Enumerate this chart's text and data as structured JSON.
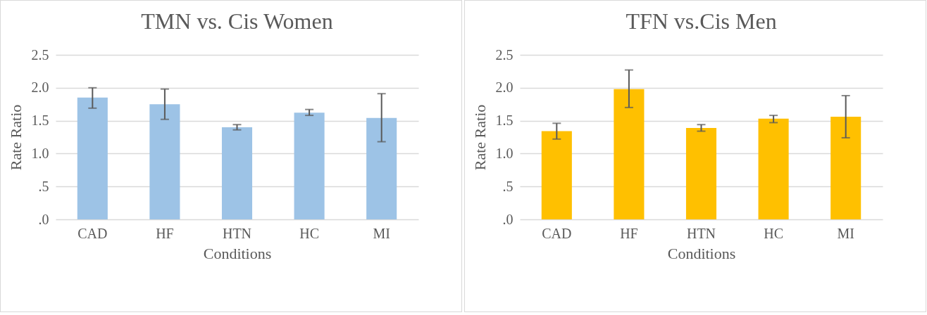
{
  "chart_data": [
    {
      "type": "bar",
      "title": "TMN vs. Cis Women",
      "xlabel": "Conditions",
      "ylabel": "Rate Ratio",
      "categories": [
        "CAD",
        "HF",
        "HTN",
        "HC",
        "MI"
      ],
      "color": "#9dc3e6",
      "values": [
        1.85,
        1.75,
        1.4,
        1.62,
        1.54
      ],
      "errors": [
        [
          1.69,
          2.0
        ],
        [
          1.52,
          1.98
        ],
        [
          1.36,
          1.44
        ],
        [
          1.58,
          1.67
        ],
        [
          1.18,
          1.91
        ]
      ],
      "ylim": [
        0,
        2.5
      ],
      "yticks": [
        {
          "value": 0,
          "label": ".0"
        },
        {
          "value": 0.5,
          "label": ".5"
        },
        {
          "value": 1,
          "label": "1.0"
        },
        {
          "value": 1.5,
          "label": "1.5"
        },
        {
          "value": 2,
          "label": "2.0"
        },
        {
          "value": 2.5,
          "label": "2.5"
        }
      ],
      "grid": "y"
    },
    {
      "type": "bar",
      "title": "TFN vs.Cis Men",
      "xlabel": "Conditions",
      "ylabel": "Rate Ratio",
      "categories": [
        "CAD",
        "HF",
        "HTN",
        "HC",
        "MI"
      ],
      "color": "#ffc000",
      "values": [
        1.34,
        1.98,
        1.39,
        1.53,
        1.56
      ],
      "errors": [
        [
          1.22,
          1.46
        ],
        [
          1.7,
          2.27
        ],
        [
          1.34,
          1.44
        ],
        [
          1.47,
          1.58
        ],
        [
          1.24,
          1.88
        ]
      ],
      "ylim": [
        0,
        2.5
      ],
      "yticks": [
        {
          "value": 0,
          "label": ".0"
        },
        {
          "value": 0.5,
          "label": ".5"
        },
        {
          "value": 1,
          "label": "1.0"
        },
        {
          "value": 1.5,
          "label": "1.5"
        },
        {
          "value": 2,
          "label": "2.0"
        },
        {
          "value": 2.5,
          "label": "2.5"
        }
      ],
      "grid": "y"
    }
  ]
}
